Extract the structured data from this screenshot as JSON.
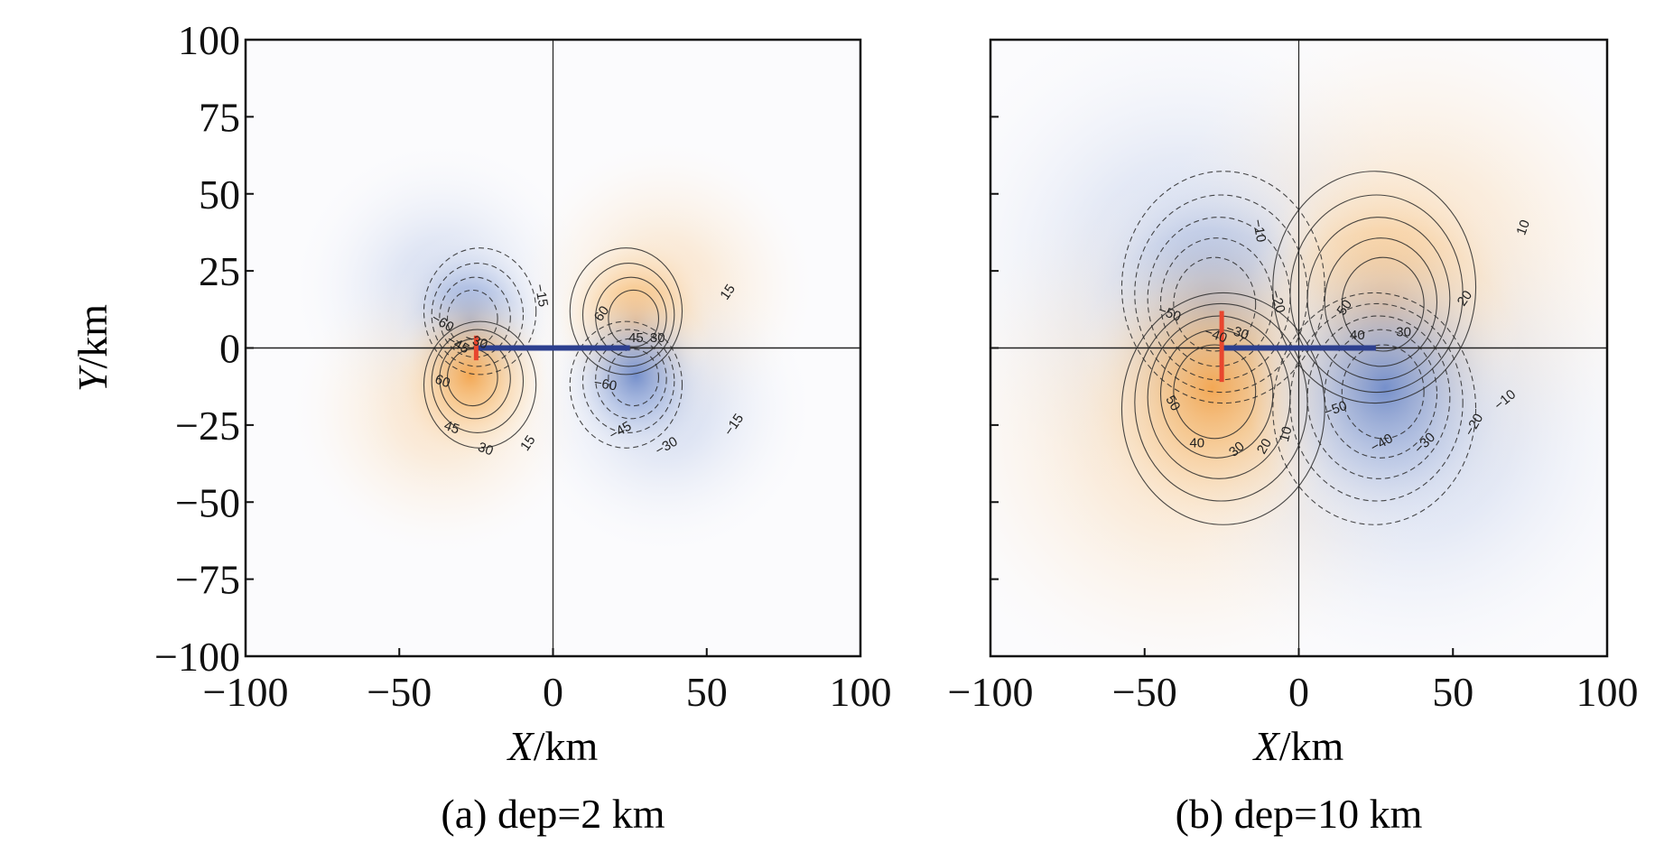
{
  "chart_data": [
    {
      "type": "heatmap",
      "id": "a",
      "caption": "(a) dep=2 km",
      "xlabel_italic": "X",
      "xlabel_unit": "/km",
      "ylabel_italic": "Y",
      "ylabel_unit": "/km",
      "xlim": [
        -100,
        100
      ],
      "ylim": [
        -100,
        100
      ],
      "xticks": [
        -100,
        -50,
        0,
        50,
        100
      ],
      "yticks": [
        -100,
        -75,
        -50,
        -25,
        0,
        25,
        50,
        75,
        100
      ],
      "xtick_labels": [
        "−100",
        "−50",
        "0",
        "50",
        "100"
      ],
      "ytick_labels": [
        "−100",
        "−75",
        "−50",
        "−25",
        "0",
        "25",
        "50",
        "75",
        "100"
      ],
      "show_ytick_labels": true,
      "fault_trace": {
        "x0": -25,
        "y0": 0,
        "x1": 25,
        "y1": 0,
        "color": "#2c3f8f"
      },
      "source_marker": {
        "x": -25,
        "y0": -4,
        "y1": 4,
        "color": "#e8462e"
      },
      "lobes": [
        {
          "cx": -27,
          "cy": 9,
          "rx": 16,
          "ry": 18,
          "sign": -1
        },
        {
          "cx": 27,
          "cy": 9,
          "rx": 16,
          "ry": 18,
          "sign": 1
        },
        {
          "cx": -27,
          "cy": -9,
          "rx": 16,
          "ry": 18,
          "sign": 1
        },
        {
          "cx": 27,
          "cy": -9,
          "rx": 16,
          "ry": 18,
          "sign": -1
        }
      ],
      "contour_levels": [
        15,
        30,
        45,
        60
      ],
      "contour_labels": [
        {
          "text": "−15",
          "x": -4,
          "y": 17,
          "rot": 80
        },
        {
          "text": "−30",
          "x": -25,
          "y": 2,
          "rot": 20
        },
        {
          "text": "−45",
          "x": -31,
          "y": 1,
          "rot": 30
        },
        {
          "text": "−60",
          "x": -36,
          "y": 8,
          "rot": 30
        },
        {
          "text": "15",
          "x": 57,
          "y": 18,
          "rot": -55
        },
        {
          "text": "30",
          "x": 34,
          "y": 3,
          "rot": 0
        },
        {
          "text": "45",
          "x": 27,
          "y": 3,
          "rot": 0
        },
        {
          "text": "60",
          "x": 16,
          "y": 11,
          "rot": -55
        },
        {
          "text": "60",
          "x": -36,
          "y": -11,
          "rot": 20
        },
        {
          "text": "45",
          "x": -33,
          "y": -26,
          "rot": 20
        },
        {
          "text": "30",
          "x": -22,
          "y": -33,
          "rot": 20
        },
        {
          "text": "15",
          "x": -8,
          "y": -31,
          "rot": -55
        },
        {
          "text": "−60",
          "x": 17,
          "y": -12,
          "rot": 10
        },
        {
          "text": "−45",
          "x": 22,
          "y": -27,
          "rot": -30
        },
        {
          "text": "−30",
          "x": 37,
          "y": -32,
          "rot": -30
        },
        {
          "text": "−15",
          "x": 59,
          "y": -25,
          "rot": -55
        }
      ]
    },
    {
      "type": "heatmap",
      "id": "b",
      "caption": "(b) dep=10 km",
      "xlabel_italic": "X",
      "xlabel_unit": "/km",
      "xlim": [
        -100,
        100
      ],
      "ylim": [
        -100,
        100
      ],
      "xticks": [
        -100,
        -50,
        0,
        50,
        100
      ],
      "yticks": [
        -100,
        -75,
        -50,
        -25,
        0,
        25,
        50,
        75,
        100
      ],
      "xtick_labels": [
        "−100",
        "−50",
        "0",
        "50",
        "100"
      ],
      "show_ytick_labels": false,
      "fault_trace": {
        "x0": -25,
        "y0": 0,
        "x1": 25,
        "y1": 0,
        "color": "#2c3f8f"
      },
      "source_marker": {
        "x": -25,
        "y0": -11,
        "y1": 12,
        "color": "#e8462e"
      },
      "lobes": [
        {
          "cx": -28,
          "cy": 13,
          "rx": 28,
          "ry": 32,
          "sign": -1
        },
        {
          "cx": 28,
          "cy": 13,
          "rx": 28,
          "ry": 32,
          "sign": 1
        },
        {
          "cx": -28,
          "cy": -13,
          "rx": 28,
          "ry": 32,
          "sign": 1
        },
        {
          "cx": 28,
          "cy": -13,
          "rx": 28,
          "ry": 32,
          "sign": -1
        }
      ],
      "contour_levels": [
        10,
        20,
        30,
        40,
        50
      ],
      "contour_labels": [
        {
          "text": "−10",
          "x": -13,
          "y": 38,
          "rot": 80
        },
        {
          "text": "−20",
          "x": -7,
          "y": 15,
          "rot": 75
        },
        {
          "text": "−30",
          "x": -20,
          "y": 5,
          "rot": 20
        },
        {
          "text": "−40",
          "x": -27,
          "y": 4,
          "rot": 20
        },
        {
          "text": "−50",
          "x": -42,
          "y": 11,
          "rot": 20
        },
        {
          "text": "10",
          "x": 73,
          "y": 39,
          "rot": -70
        },
        {
          "text": "20",
          "x": 54,
          "y": 16,
          "rot": -55
        },
        {
          "text": "30",
          "x": 34,
          "y": 5,
          "rot": 0
        },
        {
          "text": "40",
          "x": 19,
          "y": 4,
          "rot": 0
        },
        {
          "text": "50",
          "x": 15,
          "y": 13,
          "rot": -55
        },
        {
          "text": "50",
          "x": -41,
          "y": -18,
          "rot": 60
        },
        {
          "text": "40",
          "x": -33,
          "y": -31,
          "rot": 0
        },
        {
          "text": "30",
          "x": -20,
          "y": -33,
          "rot": -40
        },
        {
          "text": "20",
          "x": -11,
          "y": -32,
          "rot": -60
        },
        {
          "text": "10",
          "x": -4,
          "y": -28,
          "rot": -75
        },
        {
          "text": "−50",
          "x": 12,
          "y": -20,
          "rot": -20
        },
        {
          "text": "−40",
          "x": 27,
          "y": -31,
          "rot": -30
        },
        {
          "text": "−30",
          "x": 41,
          "y": -31,
          "rot": -45
        },
        {
          "text": "−20",
          "x": 57,
          "y": -25,
          "rot": -60
        },
        {
          "text": "−10",
          "x": 67,
          "y": -17,
          "rot": -40
        }
      ]
    }
  ]
}
